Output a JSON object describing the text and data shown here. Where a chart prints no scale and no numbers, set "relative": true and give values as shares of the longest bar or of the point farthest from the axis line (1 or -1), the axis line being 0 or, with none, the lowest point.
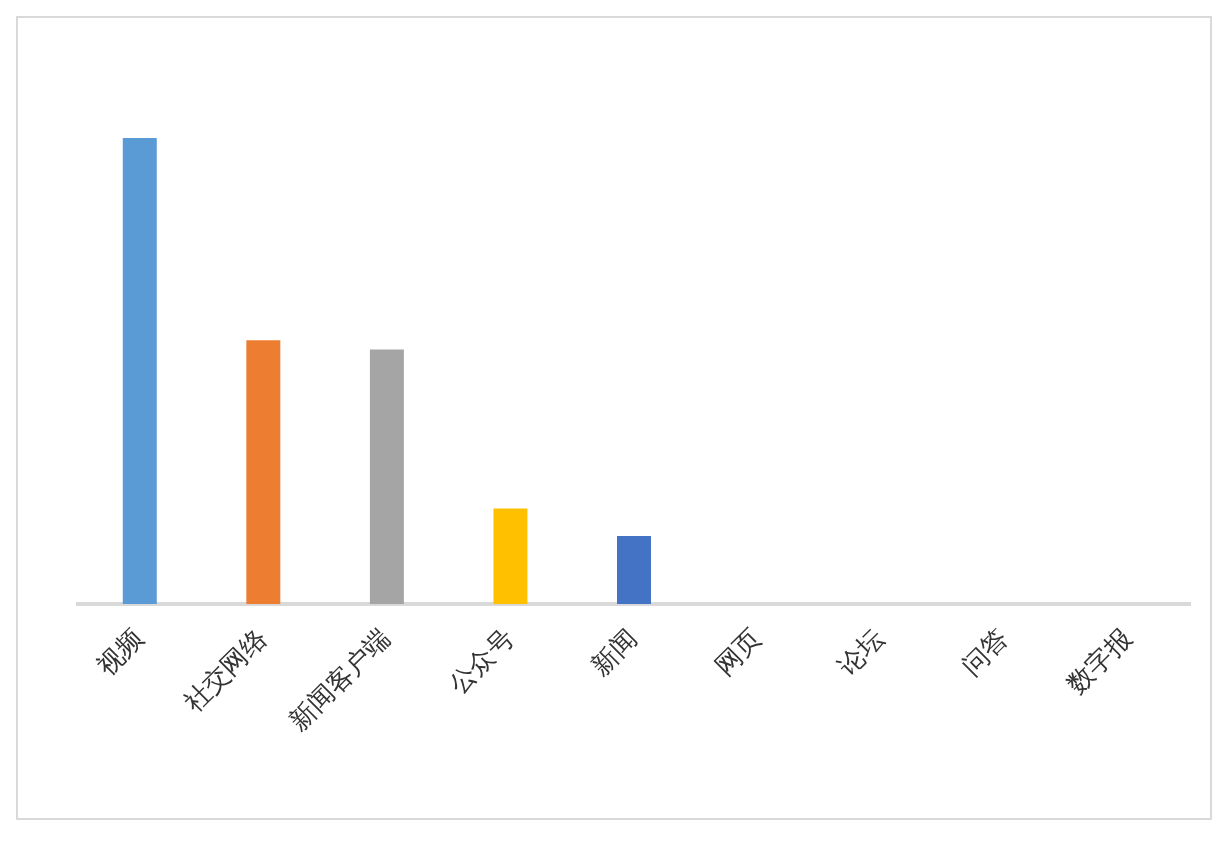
{
  "chart_data": {
    "type": "bar",
    "relative": true,
    "categories": [
      "视频",
      "社交网络",
      "新闻客户端",
      "公众号",
      "新闻",
      "网页",
      "论坛",
      "问答",
      "数字报"
    ],
    "values": [
      1,
      0.566,
      0.546,
      0.205,
      0.146,
      0,
      0,
      0,
      0
    ],
    "colors": [
      "#5b9bd5",
      "#ed7d31",
      "#a5a5a5",
      "#ffc000",
      "#4472c4",
      "#70ad47",
      "#255e91",
      "#9e480e",
      "#636363"
    ],
    "grid": false,
    "legend": false
  }
}
